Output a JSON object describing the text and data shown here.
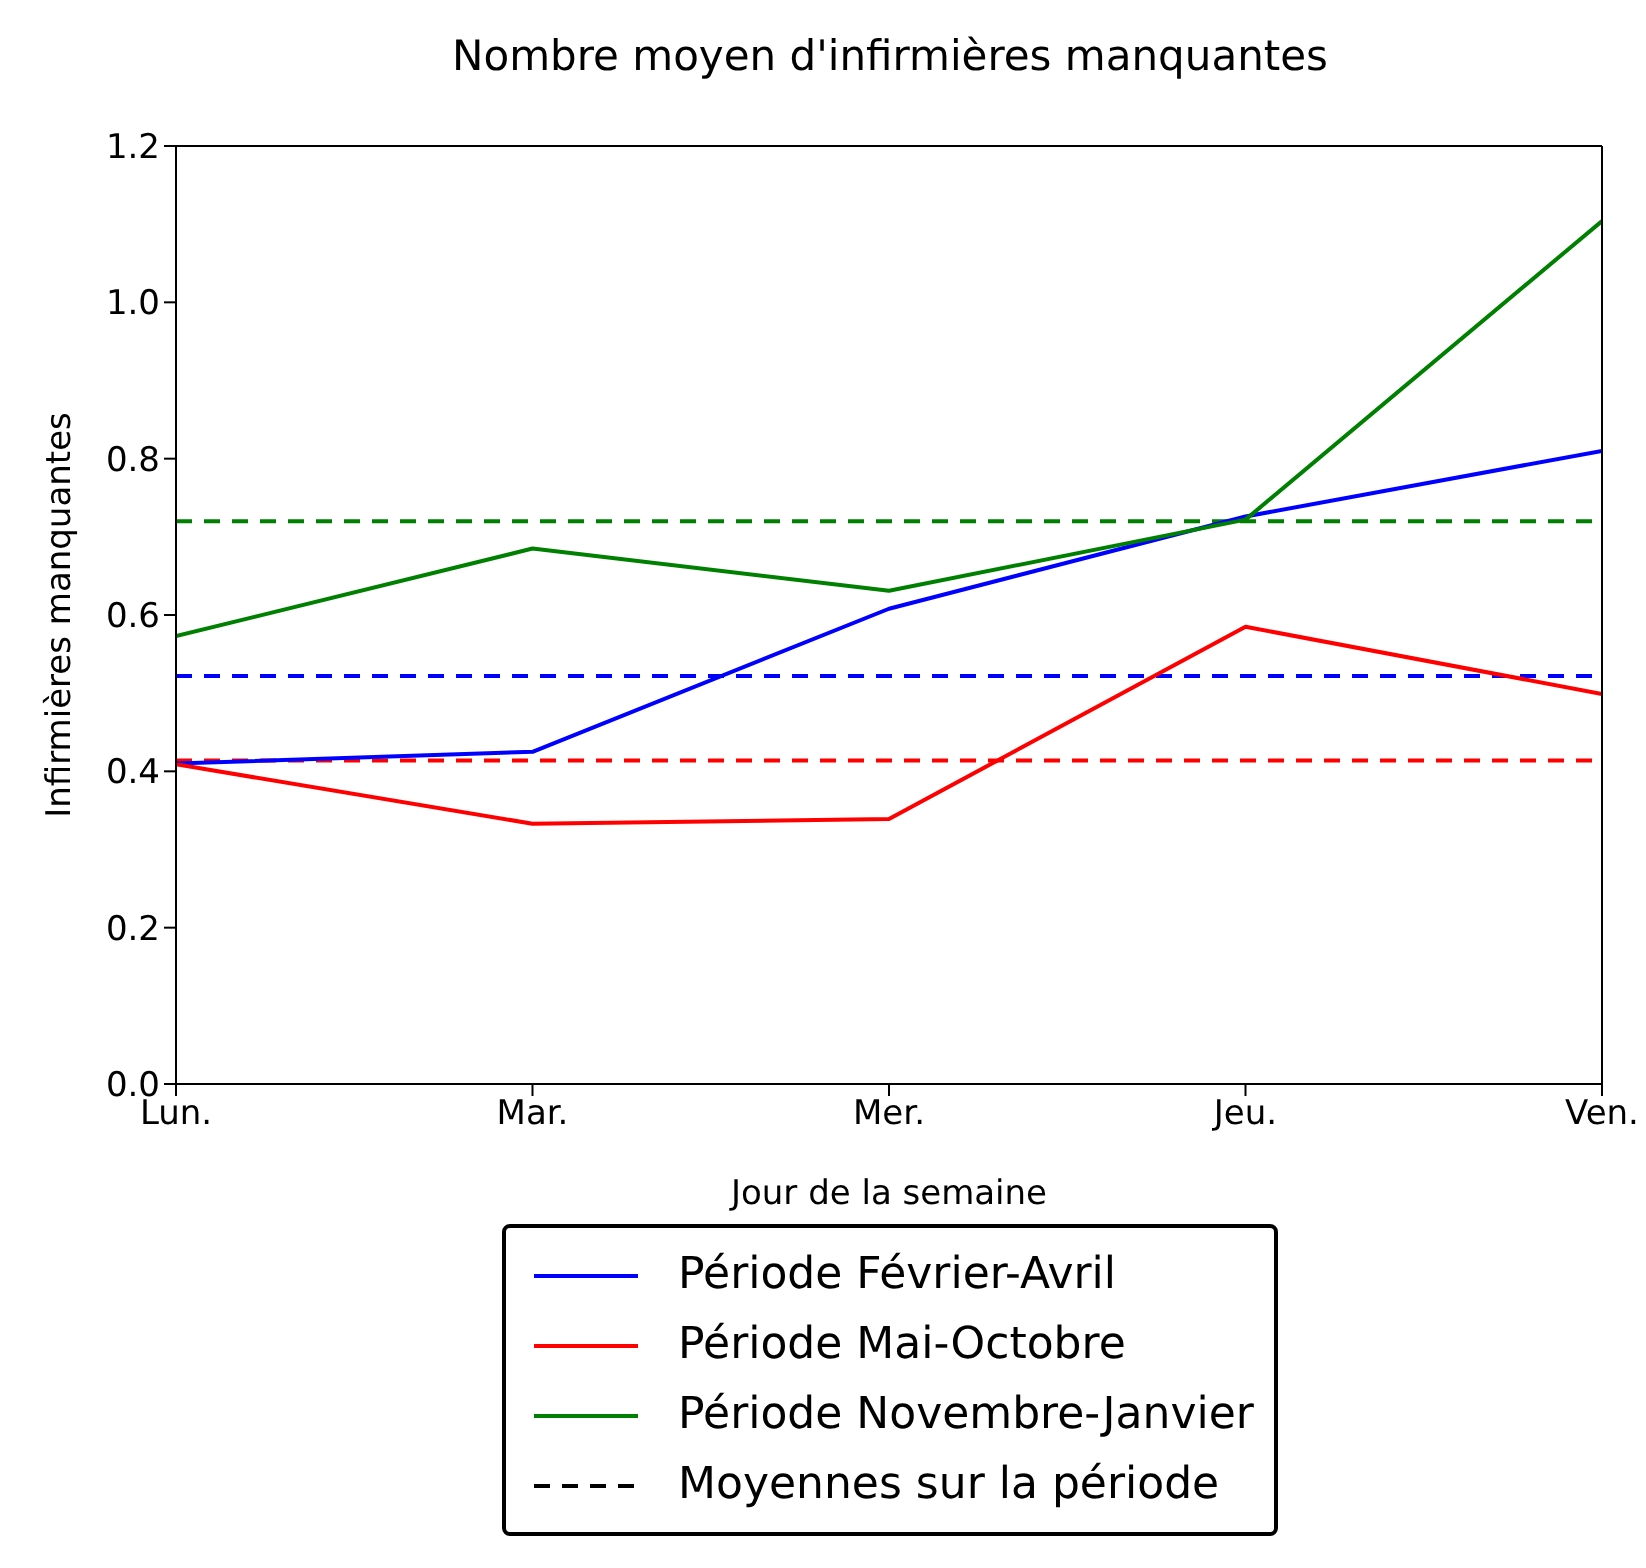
{
  "chart_data": {
    "type": "line",
    "title": "Nombre moyen d'infirmières manquantes",
    "xlabel": "Jour de la semaine",
    "ylabel": "Infirmières manquantes",
    "categories": [
      "Lun.",
      "Mar.",
      "Mer.",
      "Jeu.",
      "Ven."
    ],
    "series": [
      {
        "name": "Période Février-Avril",
        "color": "#0000ff",
        "values": [
          0.41,
          0.425,
          0.608,
          0.726,
          0.81
        ]
      },
      {
        "name": "Période Mai-Octobre",
        "color": "#ff0000",
        "values": [
          0.409,
          0.333,
          0.339,
          0.585,
          0.499
        ]
      },
      {
        "name": "Période Novembre-Janvier",
        "color": "#008000",
        "values": [
          0.573,
          0.685,
          0.631,
          0.722,
          1.104
        ]
      },
      {
        "name": "Moyennes sur la période",
        "color": "#000000",
        "line_style": "dashed",
        "values": [
          null,
          null,
          null,
          null,
          null
        ]
      }
    ],
    "ref_lines": [
      {
        "axis": "y",
        "value": 0.72,
        "color": "#008000",
        "line_style": "dashed"
      },
      {
        "axis": "y",
        "value": 0.522,
        "color": "#0000ff",
        "line_style": "dashed"
      },
      {
        "axis": "y",
        "value": 0.414,
        "color": "#ff0000",
        "line_style": "dashed"
      }
    ],
    "ylim": [
      0,
      1.2
    ],
    "yticks": [
      {
        "value": 0,
        "label": "0.0"
      },
      {
        "value": 0.2,
        "label": "0.2"
      },
      {
        "value": 0.4,
        "label": "0.4"
      },
      {
        "value": 0.6,
        "label": "0.6"
      },
      {
        "value": 0.8,
        "label": "0.8"
      },
      {
        "value": 1,
        "label": "1.0"
      },
      {
        "value": 1.2,
        "label": "1.2"
      }
    ],
    "grid": false,
    "legend": "bottom",
    "marker": "none",
    "line_style": "solid"
  }
}
